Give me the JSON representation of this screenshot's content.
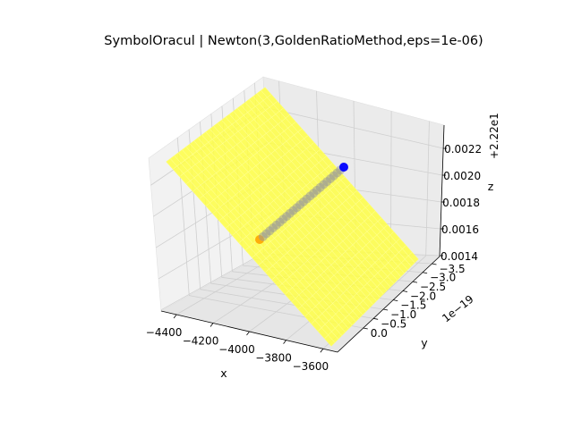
{
  "chart_data": {
    "type": "surface3d",
    "title": "SymbolOracul | Newton(3,GoldenRatioMethod,eps=1e-06)",
    "xlabel": "x",
    "ylabel": "y",
    "zlabel": "z",
    "x_ticks": [
      "−4400",
      "−4200",
      "−4000",
      "−3800",
      "−3600"
    ],
    "y_ticks": [
      "0.0",
      "−0.5",
      "−1.0",
      "−1.5",
      "−2.0",
      "−2.5",
      "−3.0",
      "−3.5"
    ],
    "z_ticks": [
      "0.0014",
      "0.0016",
      "0.0018",
      "0.0020",
      "0.0022"
    ],
    "y_offset": "1e−19",
    "z_offset": "+2.22e1",
    "grid": true,
    "surface_color": "#ffff44",
    "path_colors": {
      "start": "#ffa500",
      "middle": "#999999",
      "end": "#0000ff"
    },
    "path": {
      "start_point": {
        "x": -4000,
        "y": -1.8e-19,
        "z": 22.2015
      },
      "end_point": {
        "x": -3860,
        "y": -3e-20,
        "z": 22.202
      },
      "point_count": 26
    }
  }
}
